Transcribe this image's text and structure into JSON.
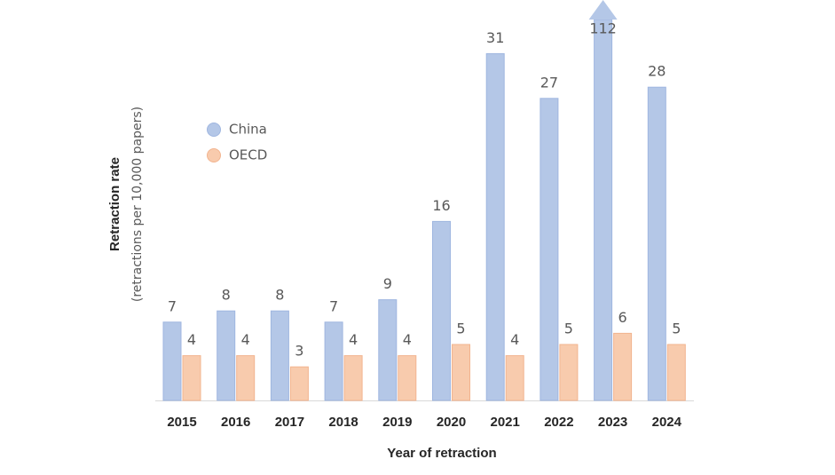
{
  "chart_data": {
    "type": "bar",
    "x_label": "Year of retraction",
    "y_label": "Retraction rate",
    "y_sublabel": "(retractions per 10,000 papers)",
    "categories": [
      "2015",
      "2016",
      "2017",
      "2018",
      "2019",
      "2020",
      "2021",
      "2022",
      "2023",
      "2024"
    ],
    "series": [
      {
        "name": "China",
        "color": "#b4c7e7",
        "values": [
          7,
          8,
          8,
          7,
          9,
          16,
          31,
          27,
          112,
          28
        ]
      },
      {
        "name": "OECD",
        "color": "#f8cbad",
        "values": [
          4,
          4,
          3,
          4,
          4,
          5,
          4,
          5,
          6,
          5
        ]
      }
    ],
    "legend": "upper left"
  }
}
